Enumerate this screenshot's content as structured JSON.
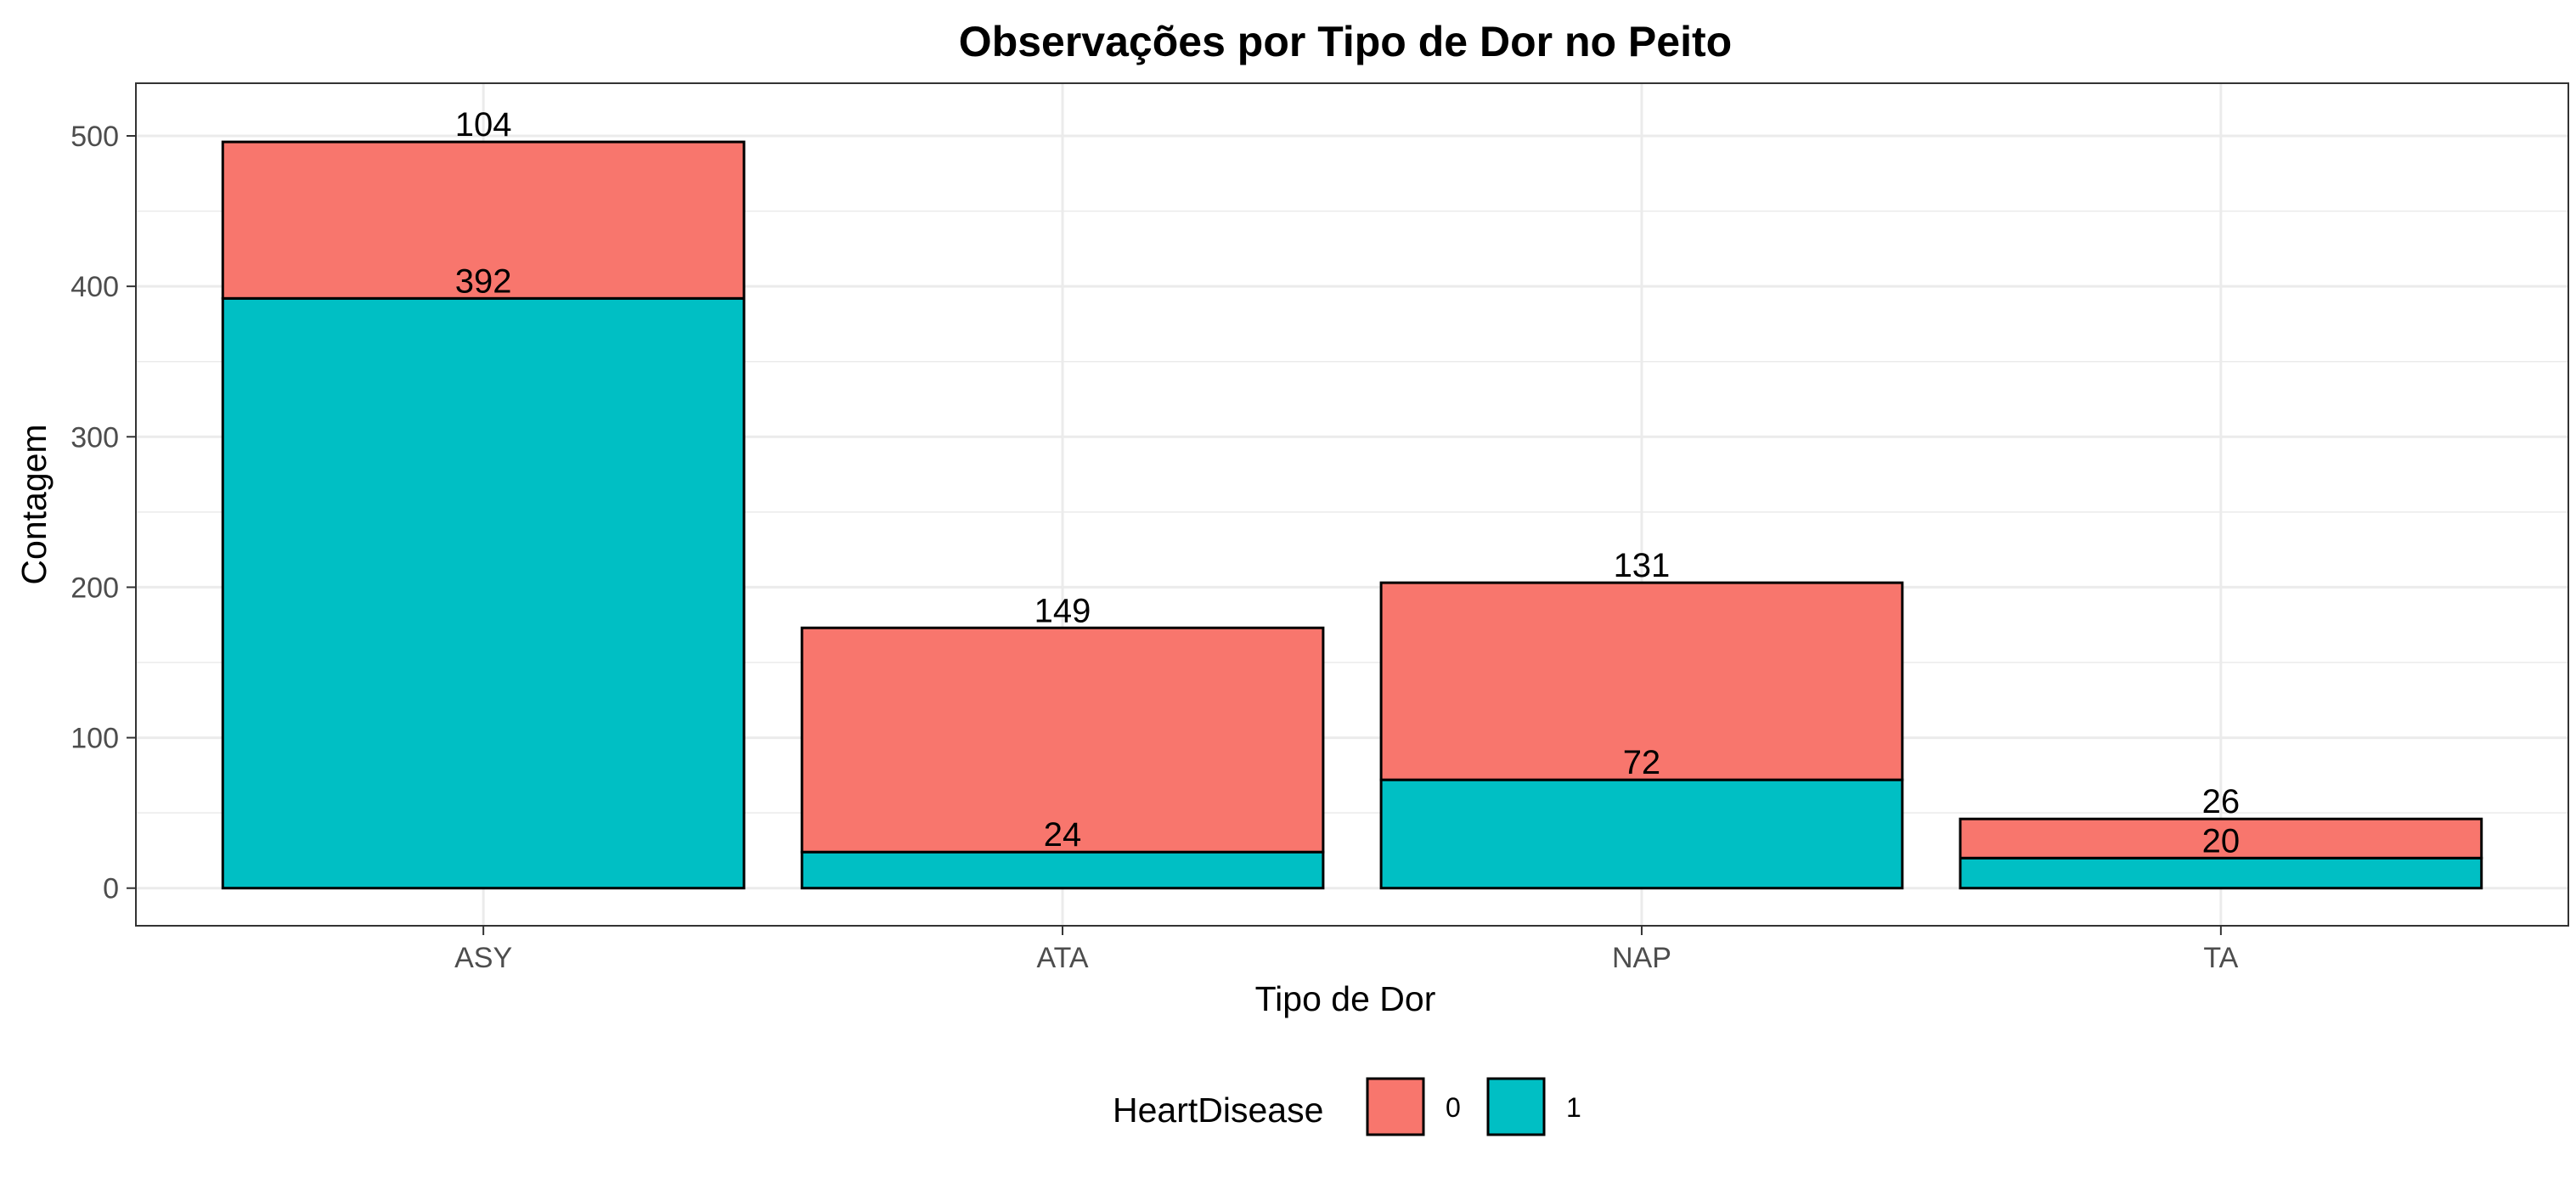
{
  "chart_data": {
    "type": "bar",
    "stacked": true,
    "title": "Observações por Tipo de Dor no Peito",
    "xlabel": "Tipo de Dor",
    "ylabel": "Contagem",
    "categories": [
      "ASY",
      "ATA",
      "NAP",
      "TA"
    ],
    "series": [
      {
        "name": "1",
        "values": [
          392,
          24,
          72,
          20
        ],
        "color": "#00BFC4"
      },
      {
        "name": "0",
        "values": [
          104,
          149,
          131,
          26
        ],
        "color": "#F8766D"
      }
    ],
    "ylim": [
      -25,
      535
    ],
    "yticks": [
      0,
      100,
      200,
      300,
      400,
      500
    ],
    "grid": true,
    "legend": {
      "title": "HeartDisease",
      "position": "bottom",
      "entries": [
        {
          "label": "0",
          "color": "#F8766D"
        },
        {
          "label": "1",
          "color": "#00BFC4"
        }
      ]
    }
  }
}
